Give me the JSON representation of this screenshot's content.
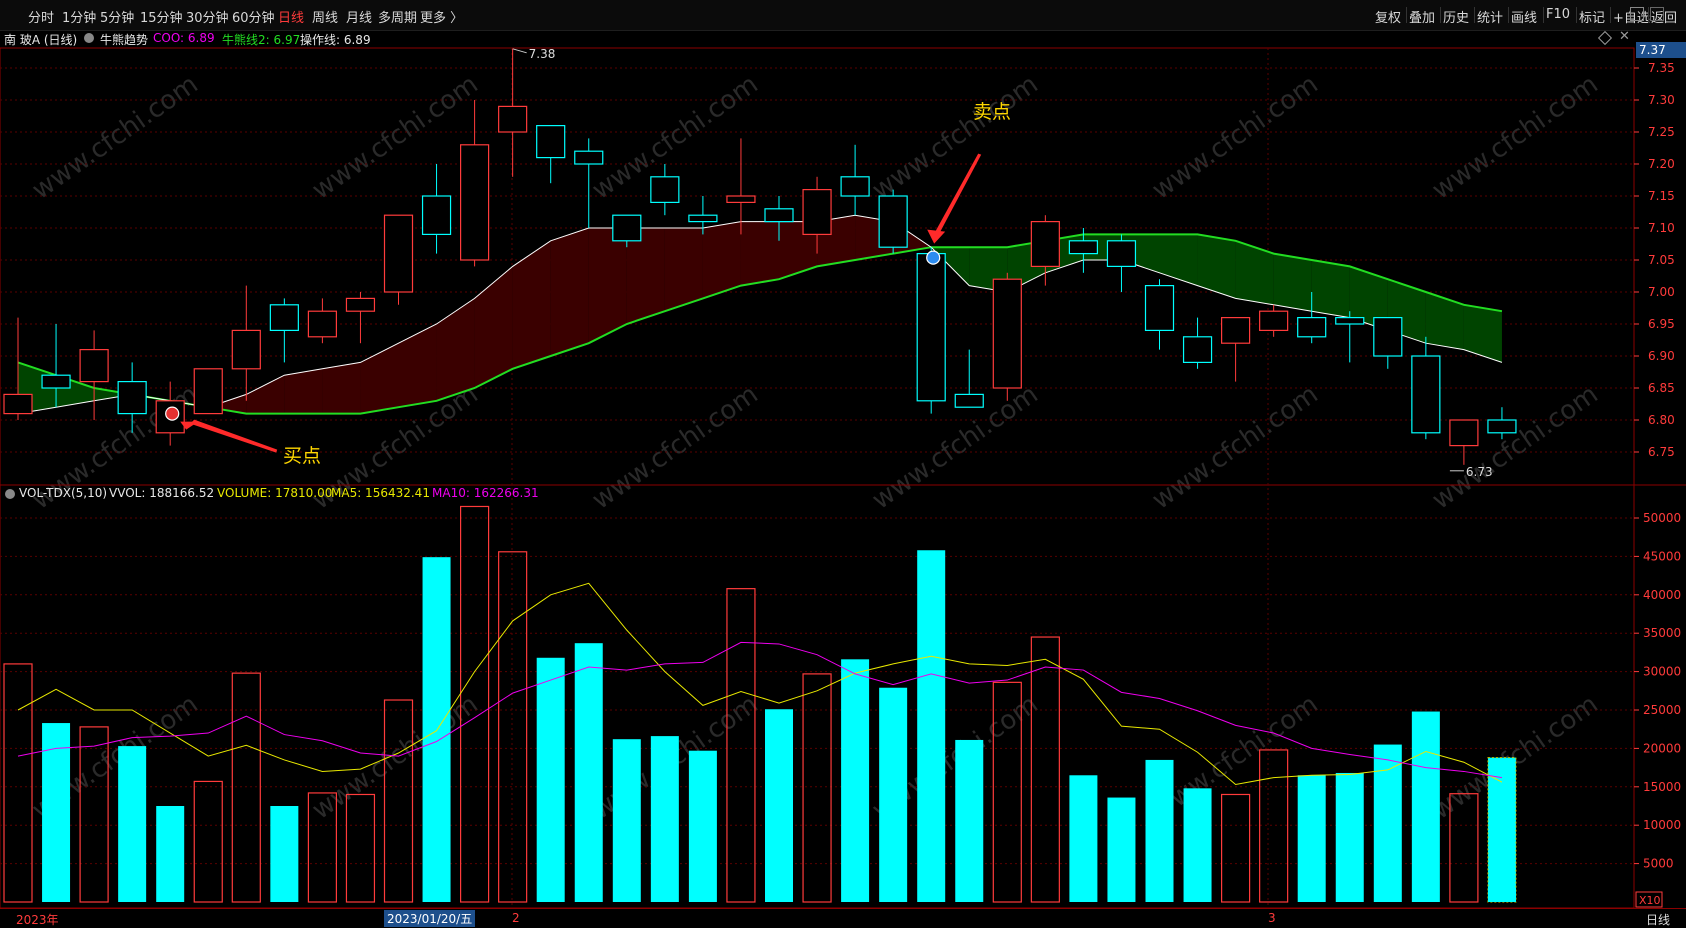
{
  "periods": [
    "分时",
    "1分钟",
    "5分钟",
    "15分钟",
    "30分钟",
    "60分钟",
    "日线",
    "周线",
    "月线",
    "多周期",
    "更多 〉"
  ],
  "active_period": "日线",
  "tools": [
    "复权",
    "叠加",
    "历史",
    "统计",
    "画线",
    "F10",
    "标记",
    "+自选",
    "返回"
  ],
  "info": {
    "stock": "南 玻A (日线)",
    "indicator": "牛熊趋势",
    "cow": "COO: 6.89",
    "line2": "牛熊线2: 6.97",
    "op": "操作线: 6.89"
  },
  "price_panel": {
    "current_price": "7.37",
    "high_label": "7.38",
    "low_label": "6.73",
    "buy_label": "买点",
    "sell_label": "卖点",
    "y_ticks": [
      "7.35",
      "7.30",
      "7.25",
      "7.20",
      "7.15",
      "7.10",
      "7.05",
      "7.00",
      "6.95",
      "6.90",
      "6.85",
      "6.80",
      "6.75"
    ]
  },
  "volume_panel": {
    "name": "VOL-TDX(5,10)",
    "vvol": "VVOL: 188166.52",
    "volume": "VOLUME: 17810.00",
    "ma5": "MA5: 156432.41",
    "ma10": "MA10: 162266.31",
    "y_ticks": [
      "50000",
      "45000",
      "40000",
      "35000",
      "30000",
      "25000",
      "20000",
      "15000",
      "10000",
      "5000"
    ],
    "multiplier": "X10"
  },
  "date_axis": {
    "year_label": "2023年",
    "cursor_date": "2023/01/20/五",
    "month2": "2",
    "month3": "3",
    "period": "日线"
  },
  "watermark": "www.cfchi.com",
  "colors": {
    "up": "#ff3b3b",
    "down": "#00ffff",
    "bull_line": "#22dd22",
    "op_line": "#ffffff",
    "ma5": "#e8e800",
    "ma10": "#ee00ee",
    "annotation": "#ffd700"
  },
  "chart_data": {
    "type": "candlestick",
    "candles": [
      {
        "o": 6.81,
        "c": 6.84,
        "h": 6.96,
        "l": 6.8
      },
      {
        "o": 6.87,
        "c": 6.85,
        "h": 6.95,
        "l": 6.82
      },
      {
        "o": 6.86,
        "c": 6.91,
        "h": 6.94,
        "l": 6.8
      },
      {
        "o": 6.86,
        "c": 6.81,
        "h": 6.89,
        "l": 6.78
      },
      {
        "o": 6.78,
        "c": 6.83,
        "h": 6.86,
        "l": 6.76
      },
      {
        "o": 6.81,
        "c": 6.88,
        "h": 6.88,
        "l": 6.81
      },
      {
        "o": 6.88,
        "c": 6.94,
        "h": 7.01,
        "l": 6.83
      },
      {
        "o": 6.98,
        "c": 6.94,
        "h": 6.99,
        "l": 6.89
      },
      {
        "o": 6.93,
        "c": 6.97,
        "h": 6.99,
        "l": 6.92
      },
      {
        "o": 6.97,
        "c": 6.99,
        "h": 7.0,
        "l": 6.92
      },
      {
        "o": 7.0,
        "c": 7.12,
        "h": 7.12,
        "l": 6.98
      },
      {
        "o": 7.15,
        "c": 7.09,
        "h": 7.2,
        "l": 7.06
      },
      {
        "o": 7.05,
        "c": 7.23,
        "h": 7.3,
        "l": 7.04
      },
      {
        "o": 7.25,
        "c": 7.29,
        "h": 7.38,
        "l": 7.18
      },
      {
        "o": 7.26,
        "c": 7.21,
        "h": 7.26,
        "l": 7.17
      },
      {
        "o": 7.22,
        "c": 7.2,
        "h": 7.24,
        "l": 7.1
      },
      {
        "o": 7.12,
        "c": 7.08,
        "h": 7.12,
        "l": 7.07
      },
      {
        "o": 7.18,
        "c": 7.14,
        "h": 7.2,
        "l": 7.12
      },
      {
        "o": 7.12,
        "c": 7.11,
        "h": 7.15,
        "l": 7.09
      },
      {
        "o": 7.14,
        "c": 7.15,
        "h": 7.24,
        "l": 7.09
      },
      {
        "o": 7.13,
        "c": 7.11,
        "h": 7.15,
        "l": 7.08
      },
      {
        "o": 7.09,
        "c": 7.16,
        "h": 7.18,
        "l": 7.06
      },
      {
        "o": 7.18,
        "c": 7.15,
        "h": 7.23,
        "l": 7.12
      },
      {
        "o": 7.15,
        "c": 7.07,
        "h": 7.16,
        "l": 7.06
      },
      {
        "o": 7.06,
        "c": 6.83,
        "h": 7.07,
        "l": 6.81
      },
      {
        "o": 6.84,
        "c": 6.82,
        "h": 6.91,
        "l": 6.82
      },
      {
        "o": 6.85,
        "c": 7.02,
        "h": 7.03,
        "l": 6.83
      },
      {
        "o": 7.04,
        "c": 7.11,
        "h": 7.12,
        "l": 7.01
      },
      {
        "o": 7.08,
        "c": 7.06,
        "h": 7.1,
        "l": 7.03
      },
      {
        "o": 7.08,
        "c": 7.04,
        "h": 7.09,
        "l": 7.0
      },
      {
        "o": 7.01,
        "c": 6.94,
        "h": 7.02,
        "l": 6.91
      },
      {
        "o": 6.93,
        "c": 6.89,
        "h": 6.96,
        "l": 6.88
      },
      {
        "o": 6.92,
        "c": 6.96,
        "h": 6.96,
        "l": 6.86
      },
      {
        "o": 6.94,
        "c": 6.97,
        "h": 6.98,
        "l": 6.93
      },
      {
        "o": 6.96,
        "c": 6.93,
        "h": 7.0,
        "l": 6.92
      },
      {
        "o": 6.96,
        "c": 6.95,
        "h": 6.97,
        "l": 6.89
      },
      {
        "o": 6.96,
        "c": 6.9,
        "h": 6.96,
        "l": 6.88
      },
      {
        "o": 6.9,
        "c": 6.78,
        "h": 6.93,
        "l": 6.77
      },
      {
        "o": 6.76,
        "c": 6.8,
        "h": 6.8,
        "l": 6.73
      },
      {
        "o": 6.8,
        "c": 6.78,
        "h": 6.82,
        "l": 6.77
      }
    ],
    "bull_line": [
      6.89,
      6.87,
      6.85,
      6.84,
      6.83,
      6.82,
      6.81,
      6.81,
      6.81,
      6.81,
      6.82,
      6.83,
      6.85,
      6.88,
      6.9,
      6.92,
      6.95,
      6.97,
      6.99,
      7.01,
      7.02,
      7.04,
      7.05,
      7.06,
      7.07,
      7.07,
      7.07,
      7.08,
      7.09,
      7.09,
      7.09,
      7.09,
      7.08,
      7.06,
      7.05,
      7.04,
      7.02,
      7.0,
      6.98,
      6.97
    ],
    "op_line": [
      6.81,
      6.82,
      6.83,
      6.84,
      6.83,
      6.82,
      6.84,
      6.87,
      6.88,
      6.89,
      6.92,
      6.95,
      6.99,
      7.04,
      7.08,
      7.1,
      7.1,
      7.1,
      7.1,
      7.11,
      7.11,
      7.11,
      7.12,
      7.11,
      7.07,
      7.01,
      7.0,
      7.03,
      7.05,
      7.05,
      7.03,
      7.01,
      6.99,
      6.98,
      6.97,
      6.96,
      6.94,
      6.92,
      6.91,
      6.89
    ],
    "volumes": [
      31000,
      23300,
      22800,
      20300,
      12500,
      15700,
      29800,
      12500,
      14200,
      14000,
      26300,
      44900,
      51500,
      45600,
      31800,
      33700,
      21200,
      21600,
      19700,
      40800,
      25100,
      29700,
      31600,
      27900,
      45800,
      21100,
      28600,
      34500,
      16500,
      13600,
      18500,
      14800,
      14000,
      19800,
      16500,
      16800,
      20500,
      24800,
      14100,
      18800
    ],
    "volume_up": [
      true,
      false,
      true,
      false,
      false,
      true,
      true,
      false,
      true,
      true,
      true,
      false,
      true,
      true,
      false,
      false,
      false,
      false,
      false,
      true,
      false,
      true,
      false,
      false,
      false,
      false,
      true,
      true,
      false,
      false,
      false,
      false,
      true,
      true,
      false,
      false,
      false,
      false,
      true,
      false
    ],
    "ma5": [
      25000,
      27700,
      25000,
      25000,
      22000,
      19000,
      20400,
      18500,
      17000,
      17300,
      19400,
      22300,
      30000,
      36600,
      40000,
      41500,
      35400,
      30000,
      25600,
      27400,
      25900,
      27500,
      29800,
      31000,
      32000,
      31000,
      30800,
      31600,
      29000,
      22900,
      22500,
      19500,
      15300,
      16200,
      16500,
      16600,
      17200,
      19600,
      18200,
      15600
    ],
    "ma10": [
      19000,
      20000,
      20300,
      21400,
      21600,
      22000,
      24200,
      21800,
      21000,
      19400,
      19000,
      20900,
      24000,
      27200,
      28900,
      30600,
      30200,
      31000,
      31200,
      33800,
      33600,
      32200,
      29700,
      28300,
      29700,
      28500,
      28900,
      30600,
      30200,
      27300,
      26500,
      24900,
      23000,
      22000,
      20000,
      19200,
      18500,
      17500,
      17000,
      16200
    ]
  }
}
